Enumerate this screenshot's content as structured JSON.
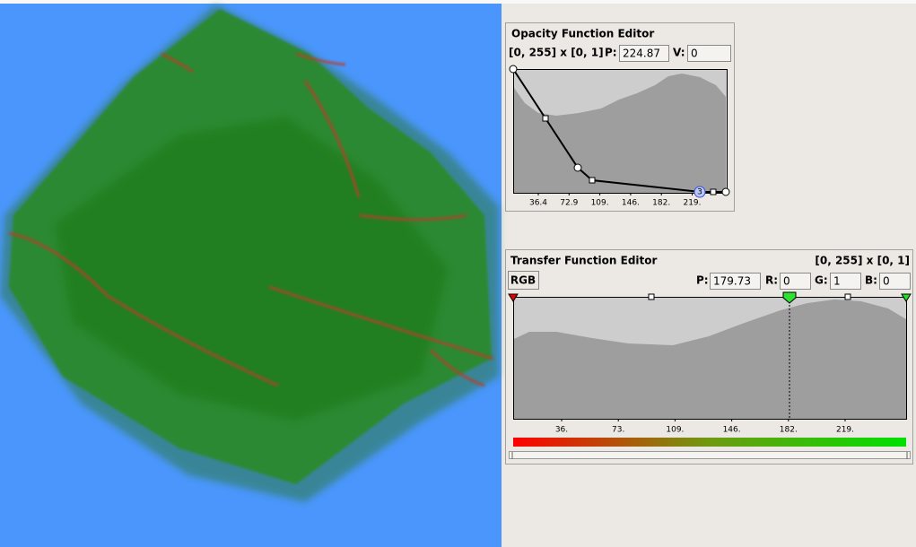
{
  "opacity_editor": {
    "title": "Opacity Function Editor",
    "range": "[0, 255] x [0, 1]",
    "p_label": "P:",
    "p_value": "224.87",
    "v_label": "V:",
    "v_value": "0",
    "ticks": [
      "36.4",
      "72.9",
      "109.",
      "146.",
      "182.",
      "219."
    ],
    "node_label": "3"
  },
  "transfer_editor": {
    "title": "Transfer Function Editor",
    "range": "[0, 255] x [0, 1]",
    "mode_button": "RGB",
    "p_label": "P:",
    "p_value": "179.73",
    "r_label": "R:",
    "r_value": "0",
    "g_label": "G:",
    "g_value": "1",
    "b_label": "B:",
    "b_value": "0",
    "ticks": [
      "36.",
      "73.",
      "109.",
      "146.",
      "182.",
      "219."
    ]
  }
}
